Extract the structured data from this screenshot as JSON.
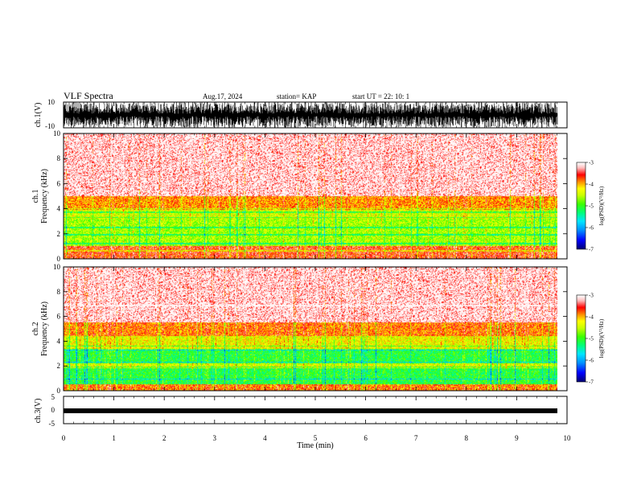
{
  "header": {
    "title": "VLF Spectra",
    "date": "Aug.17, 2024",
    "station": "station= KAP",
    "start_ut": "start  UT  =   22: 10: 1"
  },
  "chart_data": [
    {
      "type": "line",
      "name": "ch1-waveform",
      "ylabel": "ch.1(V)",
      "ylim": [
        -10,
        10
      ],
      "yticks": [
        "10",
        "-10"
      ],
      "xlim": [
        0,
        10
      ],
      "description_values": {
        "amplitude_range_V": [
          -10,
          10
        ]
      }
    },
    {
      "type": "heatmap",
      "name": "ch1-spectrogram",
      "ylabel": "ch.1\nFrequency (kHz)",
      "ylabel_top": "ch.1",
      "ylabel_bottom": "Frequency (kHz)",
      "ylim": [
        0,
        10
      ],
      "yticks": [
        "0",
        "2",
        "4",
        "6",
        "8",
        "10"
      ],
      "xlim": [
        0,
        9.8
      ],
      "colorbar": {
        "label": "log(PSD)(V²/Hz)",
        "range": [
          -7,
          -3
        ],
        "ticks": [
          "-3",
          "-4",
          "-5",
          "-6",
          "-7"
        ]
      },
      "bands_kHz": [
        {
          "from": 0.0,
          "to": 1.0,
          "level": -3.6
        },
        {
          "from": 1.0,
          "to": 3.2,
          "level": -4.6
        },
        {
          "from": 3.2,
          "to": 3.9,
          "level": -4.4
        },
        {
          "from": 3.9,
          "to": 5.0,
          "level": -3.9
        },
        {
          "from": 5.0,
          "to": 10.0,
          "level": -3.2
        }
      ],
      "lines_kHz": [
        0.6,
        1.2,
        1.9,
        2.5,
        3.3,
        3.7,
        4.0
      ]
    },
    {
      "type": "heatmap",
      "name": "ch2-spectrogram",
      "ylabel_top": "ch.2",
      "ylabel_bottom": "Frequency (kHz)",
      "ylim": [
        0,
        10
      ],
      "yticks": [
        "0",
        "2",
        "4",
        "6",
        "8",
        "10"
      ],
      "xlim": [
        0,
        9.8
      ],
      "colorbar": {
        "label": "log(PSD)(V²/Hz)",
        "range": [
          -7,
          -3
        ],
        "ticks": [
          "-3",
          "-4",
          "-5",
          "-6",
          "-7"
        ]
      },
      "bands_kHz": [
        {
          "from": 0.0,
          "to": 0.5,
          "level": -3.8
        },
        {
          "from": 0.5,
          "to": 1.8,
          "level": -5.1
        },
        {
          "from": 1.8,
          "to": 2.2,
          "level": -4.4
        },
        {
          "from": 2.2,
          "to": 3.3,
          "level": -5.1
        },
        {
          "from": 3.3,
          "to": 4.4,
          "level": -4.3
        },
        {
          "from": 4.4,
          "to": 5.5,
          "level": -3.8
        },
        {
          "from": 5.5,
          "to": 10.0,
          "level": -3.2
        }
      ],
      "lines_kHz": [
        0.9,
        1.9,
        2.3,
        3.3,
        3.6
      ],
      "faint_line_kHz": 6.9
    },
    {
      "type": "line",
      "name": "ch3-waveform",
      "ylabel": "ch.3(V)",
      "ylim": [
        -5,
        5
      ],
      "yticks": [
        "5",
        "0",
        "-5"
      ],
      "xlim": [
        0,
        10
      ],
      "trace_level_V": -1
    }
  ],
  "time_axis": {
    "xlabel": "Time  (min)",
    "ticks": [
      "0",
      "1",
      "2",
      "3",
      "4",
      "5",
      "6",
      "7",
      "8",
      "9",
      "10"
    ],
    "xlim": [
      0,
      10
    ]
  },
  "colors": {
    "colormap": [
      "#000080",
      "#0000ff",
      "#00a0ff",
      "#00e0ff",
      "#00ff80",
      "#40ff00",
      "#c0ff00",
      "#ffff00",
      "#ff8000",
      "#ff0000",
      "#ffd0d0",
      "#ffffff"
    ]
  }
}
